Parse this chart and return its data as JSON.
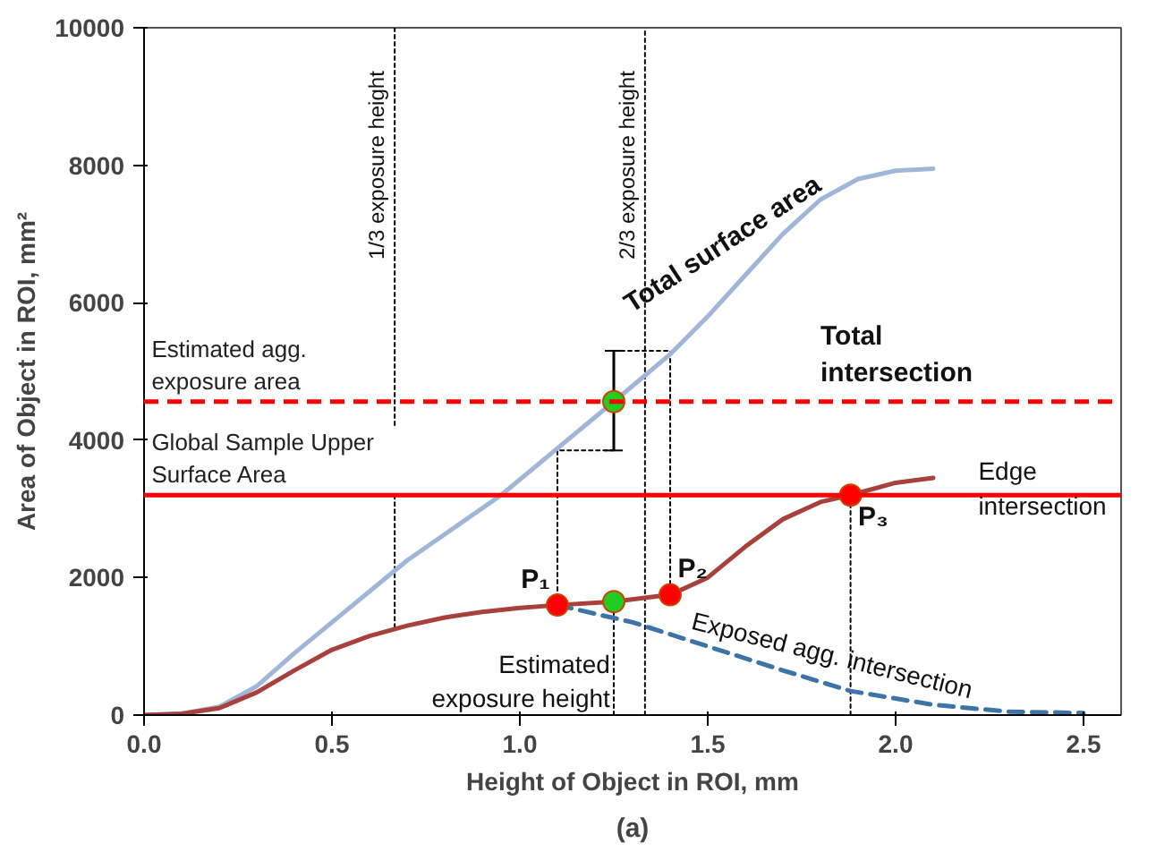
{
  "chart_data": {
    "type": "line",
    "xlabel": "Height of Object in ROI, mm",
    "ylabel": "Area of Object in ROI, mm²",
    "xlim": [
      0,
      2.6
    ],
    "ylim": [
      0,
      10000
    ],
    "xticks": [
      {
        "value": 0,
        "label": "0.0"
      },
      {
        "value": 0.5,
        "label": "0.5"
      },
      {
        "value": 1,
        "label": "1.0"
      },
      {
        "value": 1.5,
        "label": "1.5"
      },
      {
        "value": 2,
        "label": "2.0"
      },
      {
        "value": 2.5,
        "label": "2.5"
      }
    ],
    "yticks": [
      0,
      2000,
      4000,
      6000,
      8000,
      10000
    ],
    "grid": false,
    "marker": "none",
    "line_style": "solid",
    "series": [
      {
        "line_style": "dotted",
        "color": "#000000",
        "x": [
          0.667,
          0.667
        ],
        "values": [
          10000,
          4200
        ]
      },
      {
        "line_style": "dotted",
        "color": "#000000",
        "x": [
          0.667,
          0.667
        ],
        "values": [
          3200,
          1250
        ]
      },
      {
        "line_style": "dotted",
        "color": "#000000",
        "x": [
          1.333,
          1.333
        ],
        "values": [
          0,
          10000
        ]
      },
      {
        "line_style": "dotted",
        "color": "#000000",
        "x": [
          1.88,
          1.88
        ],
        "values": [
          0,
          3200
        ]
      },
      {
        "line_style": "dotted",
        "color": "#000000",
        "x": [
          1.25,
          1.25
        ],
        "values": [
          0,
          1650
        ]
      },
      {
        "line_style": "dotted",
        "color": "#000000",
        "x": [
          1.1,
          1.1,
          1.25
        ],
        "values": [
          1600,
          3850,
          3850
        ]
      },
      {
        "line_style": "dotted",
        "color": "#000000",
        "x": [
          1.25,
          1.4,
          1.4
        ],
        "values": [
          5300,
          5300,
          1750
        ]
      },
      {
        "color": "#9fb6d9",
        "x": [
          0,
          0.1,
          0.2,
          0.3,
          0.4,
          0.5,
          0.7,
          0.95,
          1.25,
          1.4,
          1.5,
          1.6,
          1.7,
          1.8,
          1.9,
          2.0,
          2.1
        ],
        "values": [
          0,
          20,
          120,
          420,
          900,
          1350,
          2250,
          3200,
          4560,
          5250,
          5800,
          6400,
          7000,
          7500,
          7800,
          7920,
          7950
        ]
      },
      {
        "color": "#a8403c",
        "x": [
          0,
          0.1,
          0.2,
          0.3,
          0.4,
          0.5,
          0.6,
          0.7,
          0.8,
          0.9,
          1.0,
          1.1,
          1.25,
          1.4,
          1.5,
          1.6,
          1.7,
          1.8,
          1.88,
          2.0,
          2.1
        ],
        "values": [
          0,
          20,
          100,
          330,
          650,
          950,
          1150,
          1300,
          1420,
          1500,
          1560,
          1600,
          1650,
          1750,
          2000,
          2450,
          2850,
          3100,
          3200,
          3380,
          3450
        ]
      },
      {
        "line_style": "dashed",
        "color": "#3d74a8",
        "x": [
          1.1,
          1.3,
          1.5,
          1.7,
          1.88,
          2.1,
          2.3,
          2.5
        ],
        "values": [
          1600,
          1350,
          1000,
          650,
          350,
          150,
          50,
          30
        ]
      },
      {
        "type": "scatter",
        "marker": "circle",
        "color": "#ff0000",
        "x": [
          1.1,
          1.4,
          1.88
        ],
        "values": [
          1600,
          1750,
          3200
        ]
      },
      {
        "type": "scatter",
        "marker": "circle",
        "color": "#22cc22",
        "x": [
          1.25,
          1.25
        ],
        "values": [
          1650,
          4560
        ],
        "errors": [
          null,
          [
            3850,
            5300
          ]
        ]
      }
    ],
    "ref_lines": [
      {
        "axis": "y",
        "value": 4560,
        "label": "Estimated agg. exposure area",
        "color": "#ff0000",
        "line_style": "dashed"
      },
      {
        "axis": "y",
        "value": 3200,
        "label": "Global Sample Upper Surface Area",
        "color": "#ff0000",
        "line_style": "solid"
      }
    ],
    "annotations": [
      {
        "text": "1/3 exposure height",
        "x": 0.667,
        "y": 8000
      },
      {
        "text": "2/3 exposure height",
        "x": 1.333,
        "y": 8000
      },
      {
        "text": "Total surface area",
        "x": 1.6,
        "y": 6400
      },
      "Total intersection",
      {
        "text": "Edge intersection",
        "x": 2.22,
        "y": 3300
      },
      {
        "text": "Exposed agg. intersection",
        "x": 1.45,
        "y": 1180
      },
      {
        "text": "Estimated exposure height",
        "x": 1.24,
        "y": 950
      },
      {
        "text": "P₁",
        "x": 1.08,
        "y": 1750
      },
      {
        "text": "P₂",
        "x": 1.42,
        "y": 1900
      },
      {
        "text": "P₃",
        "x": 1.9,
        "y": 3100
      },
      "(a)"
    ]
  }
}
